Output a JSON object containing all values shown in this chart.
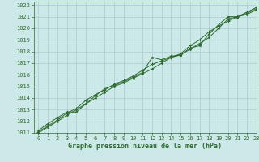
{
  "title": "Graphe pression niveau de la mer (hPa)",
  "bg_color": "#cce8e8",
  "grid_color": "#aacccc",
  "line_color": "#2d6a2d",
  "marker_color": "#2d6a2d",
  "xlim": [
    -0.5,
    23
  ],
  "ylim": [
    1011,
    1022.3
  ],
  "xticks": [
    0,
    1,
    2,
    3,
    4,
    5,
    6,
    7,
    8,
    9,
    10,
    11,
    12,
    13,
    14,
    15,
    16,
    17,
    18,
    19,
    20,
    21,
    22,
    23
  ],
  "yticks": [
    1011,
    1012,
    1013,
    1014,
    1015,
    1016,
    1017,
    1018,
    1019,
    1020,
    1021,
    1022
  ],
  "series1_x": [
    0,
    1,
    2,
    3,
    4,
    5,
    6,
    7,
    8,
    9,
    10,
    11,
    12,
    13,
    14,
    15,
    16,
    17,
    18,
    19,
    20,
    21,
    22,
    23
  ],
  "series1_y": [
    1011.2,
    1011.8,
    1012.3,
    1012.8,
    1012.8,
    1013.5,
    1014.2,
    1014.8,
    1015.1,
    1015.4,
    1015.8,
    1016.2,
    1017.5,
    1017.3,
    1017.6,
    1017.7,
    1018.3,
    1018.5,
    1019.5,
    1020.3,
    1021.0,
    1021.0,
    1021.3,
    1021.7
  ],
  "series2_x": [
    0,
    1,
    2,
    3,
    4,
    5,
    6,
    7,
    8,
    9,
    10,
    11,
    12,
    13,
    14,
    15,
    16,
    17,
    18,
    19,
    20,
    21,
    22,
    23
  ],
  "series2_y": [
    1011.0,
    1011.5,
    1012.0,
    1012.5,
    1013.0,
    1013.5,
    1014.0,
    1014.5,
    1015.0,
    1015.3,
    1015.7,
    1016.1,
    1016.5,
    1017.0,
    1017.5,
    1017.7,
    1018.2,
    1018.7,
    1019.2,
    1020.0,
    1020.8,
    1021.0,
    1021.2,
    1021.6
  ],
  "series3_x": [
    0,
    1,
    2,
    3,
    4,
    5,
    6,
    7,
    8,
    9,
    10,
    11,
    12,
    13,
    14,
    15,
    16,
    17,
    18,
    19,
    20,
    21,
    22,
    23
  ],
  "series3_y": [
    1011.1,
    1011.6,
    1012.1,
    1012.7,
    1013.1,
    1013.8,
    1014.3,
    1014.7,
    1015.2,
    1015.5,
    1015.9,
    1016.4,
    1016.9,
    1017.2,
    1017.5,
    1017.8,
    1018.5,
    1019.0,
    1019.7,
    1020.2,
    1020.6,
    1021.0,
    1021.4,
    1021.8
  ],
  "lw": 0.7,
  "ms1": 2.5,
  "ms2": 1.5,
  "ms3": 3.0,
  "tick_fontsize": 5,
  "xlabel_fontsize": 6
}
